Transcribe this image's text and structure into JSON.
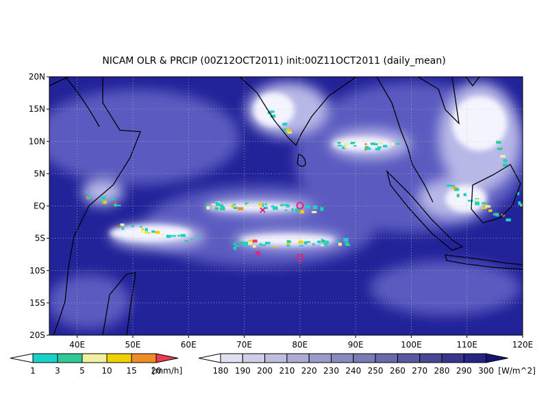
{
  "title": "NICAM OLR & PRCIP (00Z12OCT2011) init:00Z11OCT2011 (daily_mean)",
  "lat_labels": [
    "20N",
    "15N",
    "10N",
    "5N",
    "EQ",
    "5S",
    "10S",
    "15S",
    "20S"
  ],
  "lon_labels": [
    "40E",
    "50E",
    "60E",
    "70E",
    "80E",
    "90E",
    "100E",
    "110E",
    "120E"
  ],
  "precip_colorbar": {
    "labels": [
      "1",
      "3",
      "5",
      "10",
      "15",
      "20"
    ],
    "unit": "[mm/h]"
  },
  "olr_colorbar": {
    "labels": [
      "180",
      "190",
      "200",
      "210",
      "220",
      "230",
      "240",
      "250",
      "260",
      "270",
      "280",
      "290",
      "300"
    ],
    "unit": "[W/m^2]"
  }
}
